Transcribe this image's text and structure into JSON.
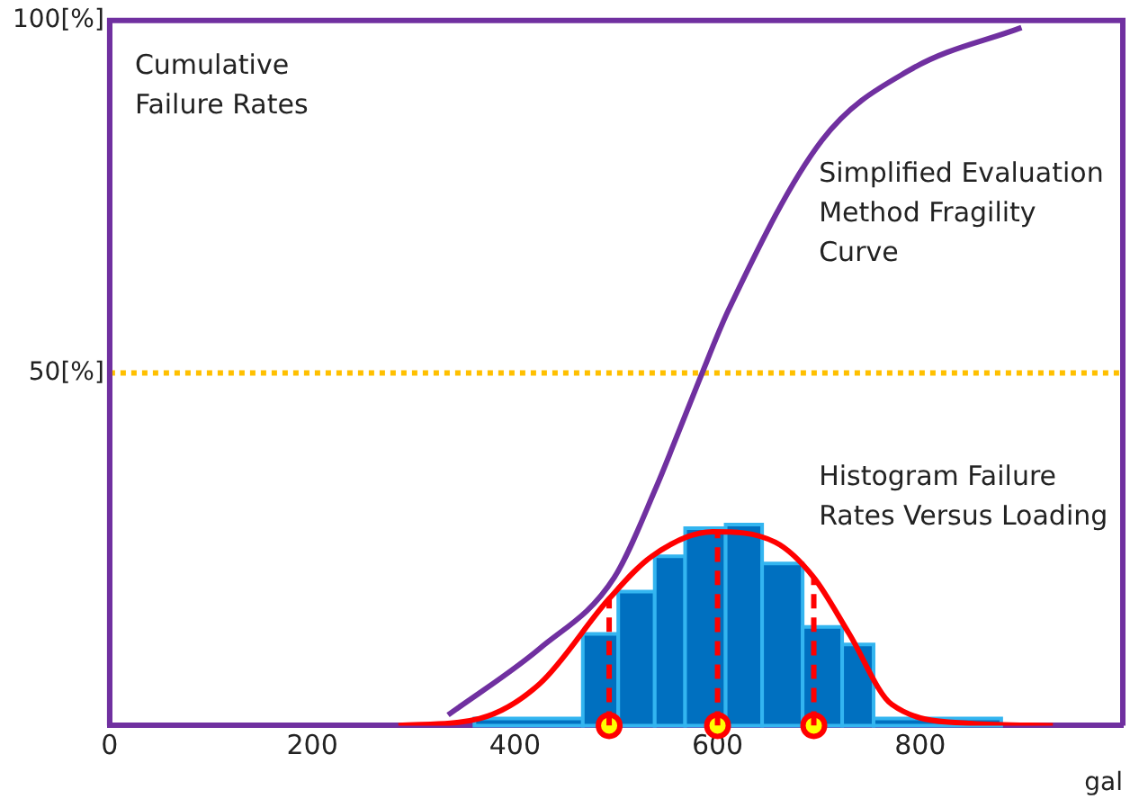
{
  "chart_data": {
    "type": "line",
    "ylabel": "Cumulative Failure Rates",
    "xlabel": "gal",
    "xlim": [
      0,
      1000
    ],
    "xticks": [
      0,
      200,
      400,
      600,
      800
    ],
    "ylim": [
      0,
      100
    ],
    "yticks": [
      {
        "value": 50,
        "label": "50[%]"
      },
      {
        "value": 100,
        "label": "100[%]"
      }
    ],
    "grid": false,
    "legend": false,
    "series": [
      {
        "type": "histogram",
        "color": "#0070c0",
        "bins": [
          360,
          467,
          502,
          538,
          568,
          608,
          644,
          684,
          723,
          754,
          880
        ],
        "values": [
          1,
          13,
          19,
          24,
          28,
          28.5,
          23,
          14,
          11.5,
          1
        ]
      },
      {
        "color": "#7030a0",
        "x": [
          334,
          425,
          498,
          540,
          557,
          582,
          611,
          703,
          790,
          900
        ],
        "values": [
          1.5,
          11,
          21,
          34,
          40,
          49,
          59,
          83,
          93,
          99
        ]
      },
      {
        "type": "line",
        "color": "#ff0000",
        "x": [
          285,
          365,
          425,
          493,
          535,
          595,
          657,
          695,
          730,
          772,
          850,
          931
        ],
        "values": [
          0,
          1,
          6,
          18,
          24,
          27.5,
          26,
          21,
          13,
          3,
          0.3,
          0
        ]
      },
      {
        "type": "line",
        "color": "#ff0000",
        "line_style": "dashed",
        "x": [
          493,
          493
        ],
        "values": [
          0,
          18
        ]
      },
      {
        "type": "line",
        "color": "#ff0000",
        "line_style": "dashed",
        "x": [
          600,
          600
        ],
        "values": [
          0,
          27.5
        ]
      },
      {
        "type": "line",
        "color": "#ff0000",
        "line_style": "dashed",
        "x": [
          695,
          695
        ],
        "values": [
          0,
          21
        ]
      },
      {
        "type": "scatter",
        "color": "#ffff00",
        "marker": "circle",
        "x": [
          493,
          600,
          695
        ],
        "values": [
          0,
          0,
          0
        ]
      }
    ],
    "ref_lines": [
      {
        "axis": "y",
        "value": 50,
        "color": "#ffc000",
        "line_style": "dotted"
      }
    ],
    "annotations": [
      "Simplified Evaluation Method Fragility Curve",
      "Histogram Failure Rates Versus Loading"
    ]
  }
}
